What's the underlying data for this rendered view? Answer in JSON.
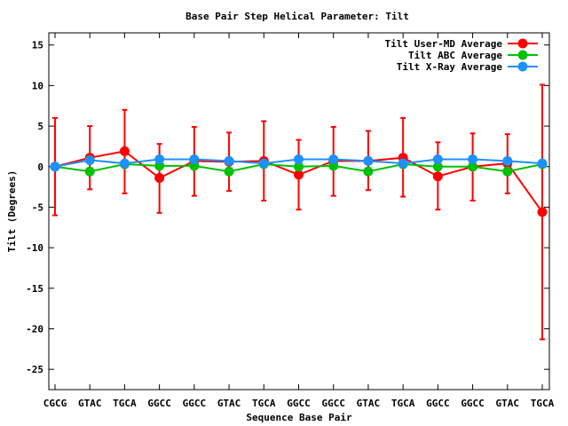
{
  "chart_data": {
    "type": "line",
    "title": "Base Pair Step Helical Parameter: Tilt",
    "xlabel": "Sequence Base Pair",
    "ylabel": "Tilt (Degrees)",
    "ylim": [
      -27.5,
      16.5
    ],
    "yticks": [
      15,
      10,
      5,
      0,
      -5,
      -10,
      -15,
      -20,
      -25
    ],
    "categories": [
      "CGCG",
      "GTAC",
      "TGCA",
      "GGCC",
      "GGCC",
      "GTAC",
      "TGCA",
      "GGCC",
      "GGCC",
      "GTAC",
      "TGCA",
      "GGCC",
      "GGCC",
      "GTAC",
      "TGCA"
    ],
    "grid": false,
    "legend_position": "top-right",
    "series": [
      {
        "name": "Tilt User-MD Average",
        "color": "#ff0000",
        "values": [
          0.0,
          1.1,
          1.9,
          -1.4,
          0.7,
          0.6,
          0.7,
          -1.0,
          0.7,
          0.7,
          1.1,
          -1.2,
          0.0,
          0.4,
          -5.6
        ],
        "err_low": [
          -6.0,
          -2.8,
          -3.3,
          -5.7,
          -3.6,
          -3.0,
          -4.2,
          -5.3,
          -3.6,
          -2.9,
          -3.7,
          -5.3,
          -4.2,
          -3.3,
          -21.3
        ],
        "err_high": [
          6.0,
          5.0,
          7.0,
          2.8,
          4.9,
          4.2,
          5.6,
          3.3,
          4.9,
          4.4,
          6.0,
          3.0,
          4.1,
          4.0,
          10.1
        ]
      },
      {
        "name": "Tilt ABC Average",
        "color": "#00c000",
        "values": [
          0.0,
          -0.6,
          0.3,
          0.1,
          0.1,
          -0.6,
          0.3,
          0.0,
          0.1,
          -0.6,
          0.3,
          0.0,
          0.0,
          -0.6,
          0.3
        ]
      },
      {
        "name": "Tilt X-Ray Average",
        "color": "#1e90ff",
        "values": [
          0.0,
          0.8,
          0.4,
          0.9,
          0.9,
          0.7,
          0.4,
          0.9,
          0.9,
          0.7,
          0.4,
          0.9,
          0.9,
          0.7,
          0.4
        ]
      }
    ]
  }
}
